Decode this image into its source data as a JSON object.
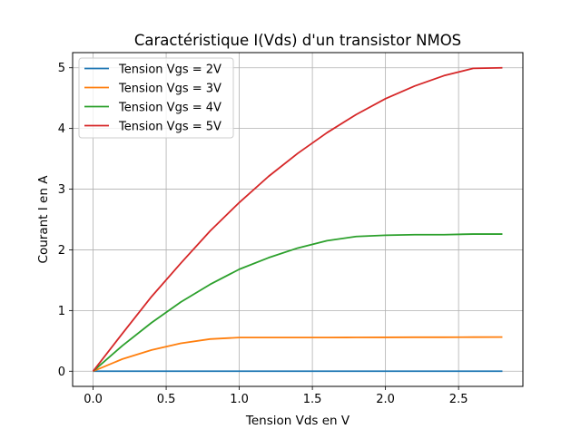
{
  "chart_data": {
    "type": "line",
    "title": "Caractéristique I(Vds) d'un transistor NMOS",
    "xlabel": "Tension Vds en V",
    "ylabel": "Courant I en A",
    "xlim": [
      -0.14,
      2.94
    ],
    "ylim": [
      -0.25,
      5.25
    ],
    "xticks": [
      0.0,
      0.5,
      1.0,
      1.5,
      2.0,
      2.5
    ],
    "xtick_labels": [
      "0.0",
      "0.5",
      "1.0",
      "1.5",
      "2.0",
      "2.5"
    ],
    "yticks": [
      0,
      1,
      2,
      3,
      4,
      5
    ],
    "ytick_labels": [
      "0",
      "1",
      "2",
      "3",
      "4",
      "5"
    ],
    "grid": true,
    "legend_position": "top-left",
    "series": [
      {
        "name": "Tension Vgs = 2V",
        "color": "#1f77b4",
        "x": [
          0.0,
          0.2,
          0.4,
          0.6,
          0.8,
          1.0,
          1.2,
          1.4,
          1.6,
          1.8,
          2.0,
          2.2,
          2.4,
          2.6,
          2.8
        ],
        "y": [
          0,
          0,
          0,
          0,
          0,
          0,
          0,
          0,
          0,
          0,
          0,
          0,
          0,
          0,
          0
        ]
      },
      {
        "name": "Tension Vgs = 3V",
        "color": "#ff7f0e",
        "x": [
          0.0,
          0.2,
          0.4,
          0.6,
          0.8,
          1.0,
          1.2,
          1.4,
          1.6,
          1.8,
          2.0,
          2.2,
          2.4,
          2.6,
          2.8
        ],
        "y": [
          0,
          0.2,
          0.35,
          0.46,
          0.53,
          0.555,
          0.555,
          0.555,
          0.555,
          0.557,
          0.558,
          0.56,
          0.56,
          0.562,
          0.563
        ]
      },
      {
        "name": "Tension Vgs = 4V",
        "color": "#2ca02c",
        "x": [
          0.0,
          0.2,
          0.4,
          0.6,
          0.8,
          1.0,
          1.2,
          1.4,
          1.6,
          1.8,
          2.0,
          2.2,
          2.4,
          2.6,
          2.8
        ],
        "y": [
          0,
          0.42,
          0.8,
          1.14,
          1.43,
          1.68,
          1.87,
          2.03,
          2.15,
          2.22,
          2.24,
          2.25,
          2.25,
          2.26,
          2.26
        ]
      },
      {
        "name": "Tension Vgs = 5V",
        "color": "#d62728",
        "x": [
          0.0,
          0.2,
          0.4,
          0.6,
          0.8,
          1.0,
          1.2,
          1.4,
          1.6,
          1.8,
          2.0,
          2.2,
          2.4,
          2.6,
          2.8
        ],
        "y": [
          0,
          0.62,
          1.23,
          1.78,
          2.31,
          2.78,
          3.21,
          3.59,
          3.93,
          4.23,
          4.49,
          4.7,
          4.87,
          4.99,
          5.0
        ]
      }
    ]
  }
}
